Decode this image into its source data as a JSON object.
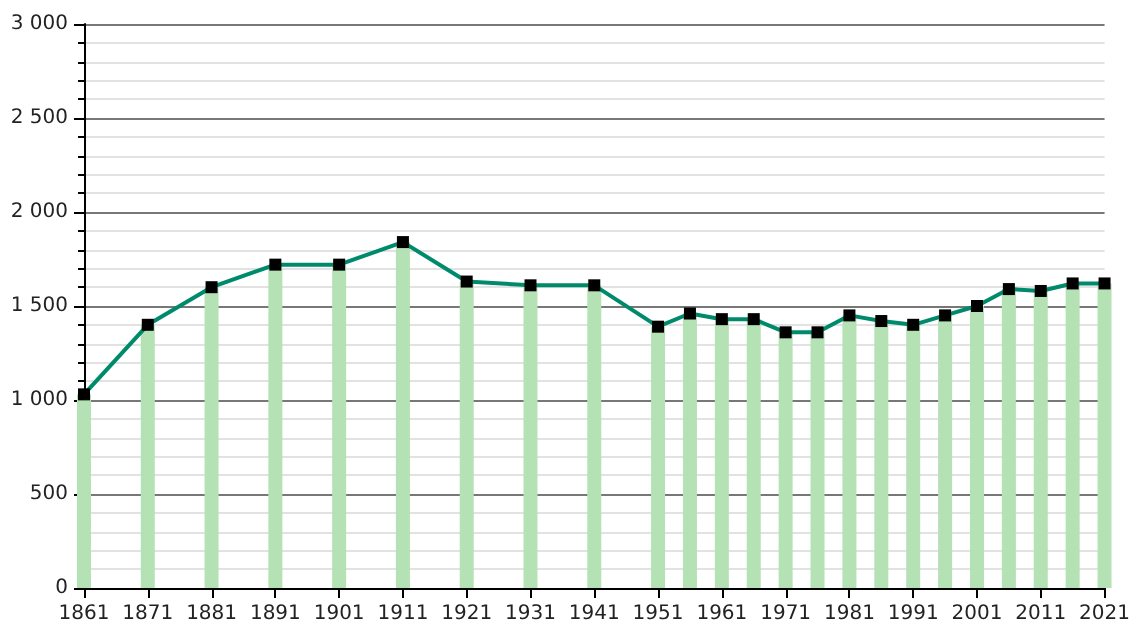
{
  "chart_data": {
    "type": "line",
    "x": [
      1861,
      1871,
      1881,
      1891,
      1901,
      1911,
      1921,
      1931,
      1941,
      1951,
      1956,
      1961,
      1966,
      1971,
      1976,
      1981,
      1986,
      1991,
      1996,
      2001,
      2006,
      2011,
      2016,
      2021
    ],
    "series": [
      {
        "type": "bar",
        "color": "#b4e2b4",
        "values": [
          1030,
          1400,
          1600,
          1720,
          1720,
          1840,
          1630,
          1610,
          1610,
          1390,
          1460,
          1430,
          1430,
          1360,
          1360,
          1450,
          1420,
          1400,
          1450,
          1500,
          1590,
          1580,
          1620,
          1620
        ]
      },
      {
        "color": "#008a6c",
        "marker": "square",
        "values": [
          1030,
          1400,
          1600,
          1720,
          1720,
          1840,
          1630,
          1610,
          1610,
          1390,
          1460,
          1430,
          1430,
          1360,
          1360,
          1450,
          1420,
          1400,
          1450,
          1500,
          1590,
          1580,
          1620,
          1620
        ]
      }
    ],
    "xlim": [
      1861,
      2021
    ],
    "xticks": [
      1861,
      1871,
      1881,
      1891,
      1901,
      1911,
      1921,
      1931,
      1941,
      1951,
      1961,
      1971,
      1981,
      1991,
      2001,
      2011,
      2021
    ],
    "ylim": [
      0,
      3000
    ],
    "yticks": [
      {
        "value": 0,
        "label": "0"
      },
      {
        "value": 500,
        "label": "500"
      },
      {
        "value": 1000,
        "label": "1 000"
      },
      {
        "value": 1500,
        "label": "1 500"
      },
      {
        "value": 2000,
        "label": "2 000"
      },
      {
        "value": 2500,
        "label": "2 500"
      },
      {
        "value": 3000,
        "label": "3 000"
      }
    ],
    "grid": "y"
  }
}
